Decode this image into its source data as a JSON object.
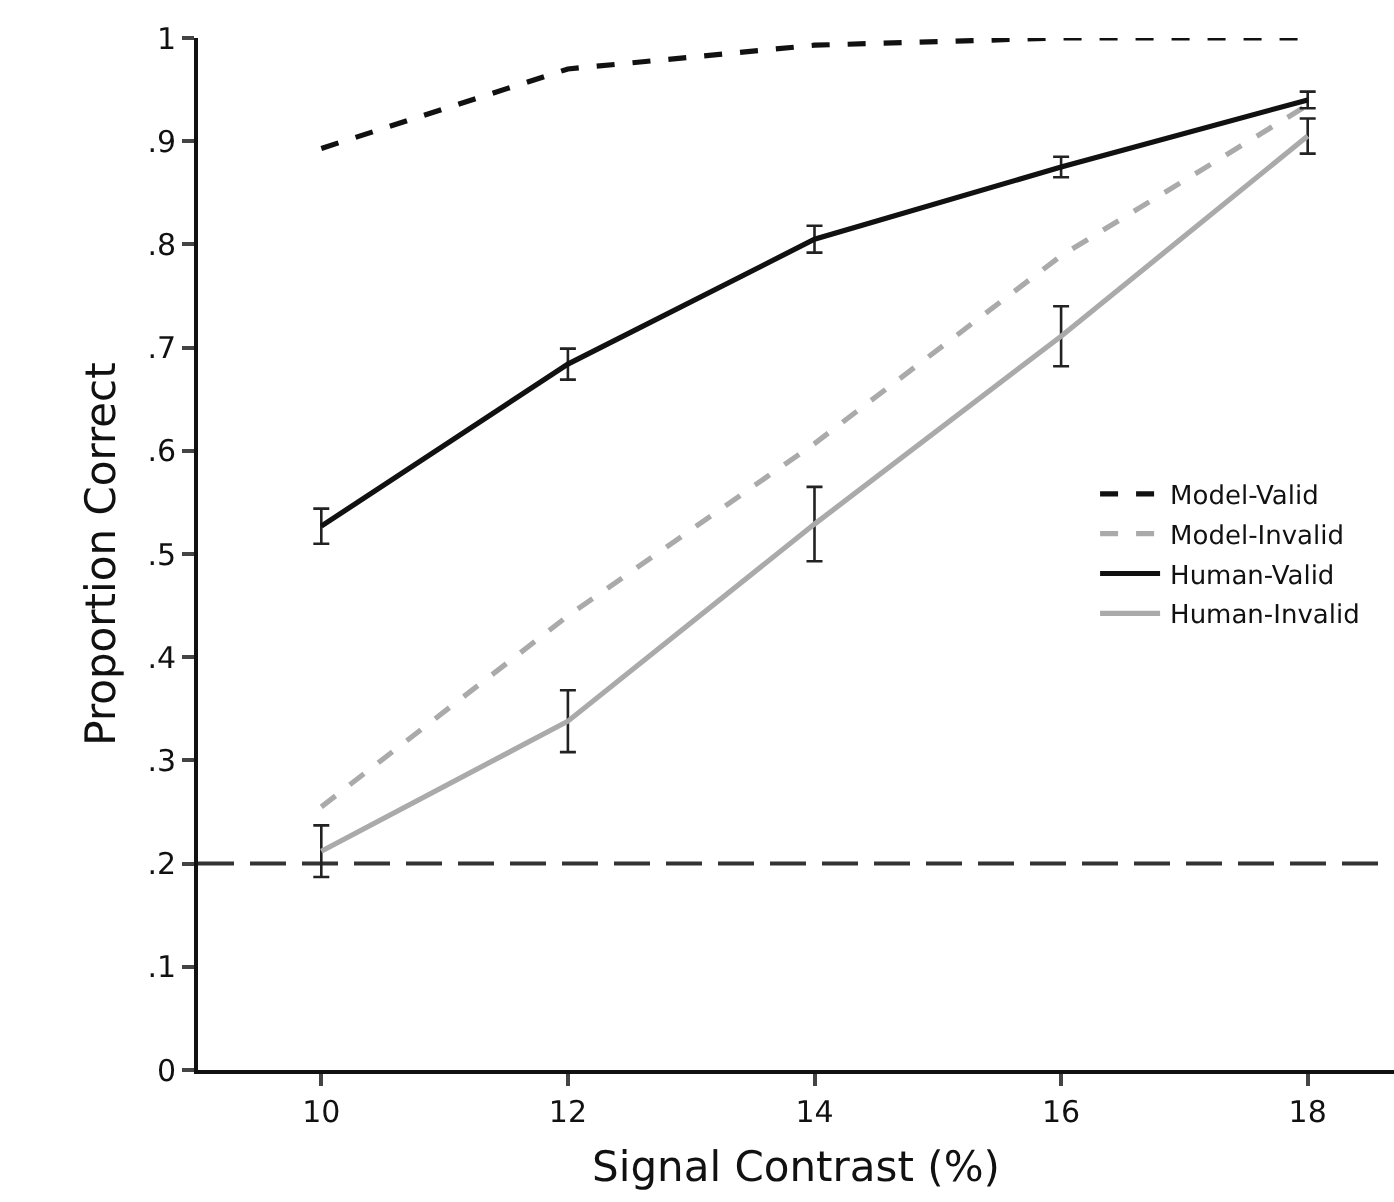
{
  "chart_data": {
    "type": "line",
    "xlabel": "Signal Contrast (%)",
    "ylabel": "Proportion Correct",
    "x": [
      10,
      12,
      14,
      16,
      18
    ],
    "xlim": [
      9,
      18.7
    ],
    "xticks": [
      10,
      12,
      14,
      16,
      18
    ],
    "ylim": [
      0,
      1
    ],
    "yticks": [
      0,
      {
        "value": 0.1,
        "label": ".1"
      },
      {
        "value": 0.2,
        "label": ".2"
      },
      {
        "value": 0.3,
        "label": ".3"
      },
      {
        "value": 0.4,
        "label": ".4"
      },
      {
        "value": 0.5,
        "label": ".5"
      },
      {
        "value": 0.6,
        "label": ".6"
      },
      {
        "value": 0.7,
        "label": ".7"
      },
      {
        "value": 0.8,
        "label": ".8"
      },
      {
        "value": 0.9,
        "label": ".9"
      },
      1
    ],
    "grid": false,
    "legend": "right",
    "marker": "none",
    "series": [
      {
        "name": "Model-Valid",
        "color": "#111111",
        "line_style": "dashed",
        "values": [
          0.893,
          0.97,
          0.993,
          1.0,
          1.0
        ]
      },
      {
        "name": "Model-Invalid",
        "color": "#aaaaaa",
        "line_style": "dashed",
        "values": [
          0.255,
          0.44,
          0.607,
          0.789,
          0.935
        ]
      },
      {
        "name": "Human-Valid",
        "color": "#111111",
        "line_style": "solid",
        "values": [
          0.527,
          0.684,
          0.805,
          0.875,
          0.94
        ],
        "errors": [
          0.017,
          0.015,
          0.013,
          0.01,
          0.008
        ]
      },
      {
        "name": "Human-Invalid",
        "color": "#aaaaaa",
        "line_style": "solid",
        "values": [
          0.212,
          0.338,
          0.529,
          0.711,
          0.905
        ],
        "errors": [
          0.025,
          0.03,
          0.036,
          0.029,
          0.017
        ]
      }
    ],
    "ref_lines": [
      {
        "axis": "y",
        "value": 0.2,
        "color": "#333333",
        "line_style": "dashed"
      }
    ]
  }
}
